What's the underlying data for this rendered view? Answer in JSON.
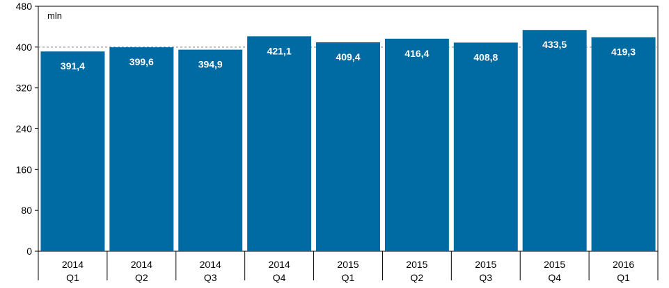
{
  "chart_data": {
    "type": "bar",
    "unit": "mln",
    "categories": [
      [
        "2014",
        "Q1"
      ],
      [
        "2014",
        "Q2"
      ],
      [
        "2014",
        "Q3"
      ],
      [
        "2014",
        "Q4"
      ],
      [
        "2015",
        "Q1"
      ],
      [
        "2015",
        "Q2"
      ],
      [
        "2015",
        "Q3"
      ],
      [
        "2015",
        "Q4"
      ],
      [
        "2016",
        "Q1"
      ]
    ],
    "values": [
      391.4,
      399.6,
      394.9,
      421.1,
      409.4,
      416.4,
      408.8,
      433.5,
      419.3
    ],
    "value_labels": [
      "391,4",
      "399,6",
      "394,9",
      "421,1",
      "409,4",
      "416,4",
      "408,8",
      "433,5",
      "419,3"
    ],
    "ylim": [
      0,
      480
    ],
    "yticks": [
      0,
      80,
      160,
      240,
      320,
      400,
      480
    ],
    "reference_line": 400,
    "bar_color": "#006aa3",
    "grid": false
  }
}
